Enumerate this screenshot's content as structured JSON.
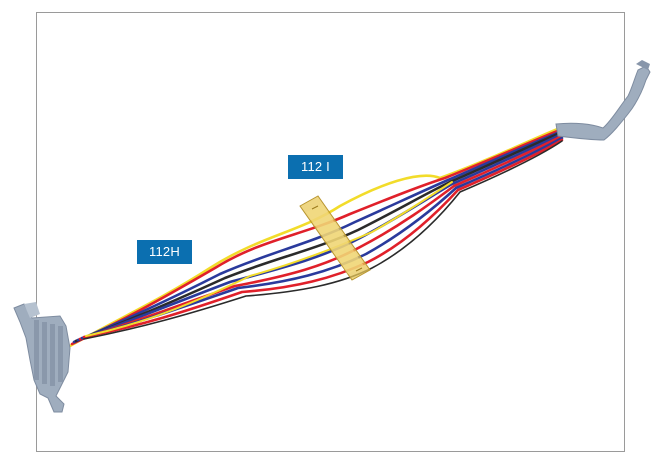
{
  "callouts": {
    "c1": "112 I",
    "c2": "112H"
  },
  "colors": {
    "callout_bg": "#0b6fb0",
    "connector_grey": "#9fadbe",
    "clip_yellow": "#e8c85a",
    "wire_red": "#e0202a",
    "wire_blue": "#2a3a9c",
    "wire_yellow": "#f2dc2a",
    "wire_black": "#2b2b2b",
    "frame_border": "#9a9a9a"
  },
  "icons": [
    "wire-harness-illustration",
    "multi-pin-connector",
    "single-pin-connector",
    "harness-clip"
  ]
}
